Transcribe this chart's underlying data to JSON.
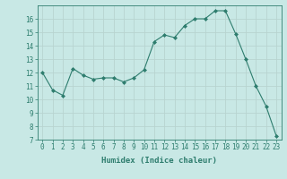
{
  "x": [
    0,
    1,
    2,
    3,
    4,
    5,
    6,
    7,
    8,
    9,
    10,
    11,
    12,
    13,
    14,
    15,
    16,
    17,
    18,
    19,
    20,
    21,
    22,
    23
  ],
  "y": [
    12.0,
    10.7,
    10.3,
    12.3,
    11.8,
    11.5,
    11.6,
    11.6,
    11.3,
    11.6,
    12.2,
    14.3,
    14.8,
    14.6,
    15.5,
    16.0,
    16.0,
    16.6,
    16.6,
    14.9,
    13.0,
    11.0,
    9.5,
    7.3
  ],
  "line_color": "#2e7d6e",
  "marker": "D",
  "marker_size": 2.0,
  "bg_color": "#c8e8e5",
  "grid_color": "#b8d4d0",
  "xlabel": "Humidex (Indice chaleur)",
  "ylim": [
    7,
    17
  ],
  "xlim": [
    -0.5,
    23.5
  ],
  "yticks": [
    7,
    8,
    9,
    10,
    11,
    12,
    13,
    14,
    15,
    16
  ],
  "xticks": [
    0,
    1,
    2,
    3,
    4,
    5,
    6,
    7,
    8,
    9,
    10,
    11,
    12,
    13,
    14,
    15,
    16,
    17,
    18,
    19,
    20,
    21,
    22,
    23
  ],
  "label_fontsize": 6.5,
  "tick_fontsize": 5.5
}
